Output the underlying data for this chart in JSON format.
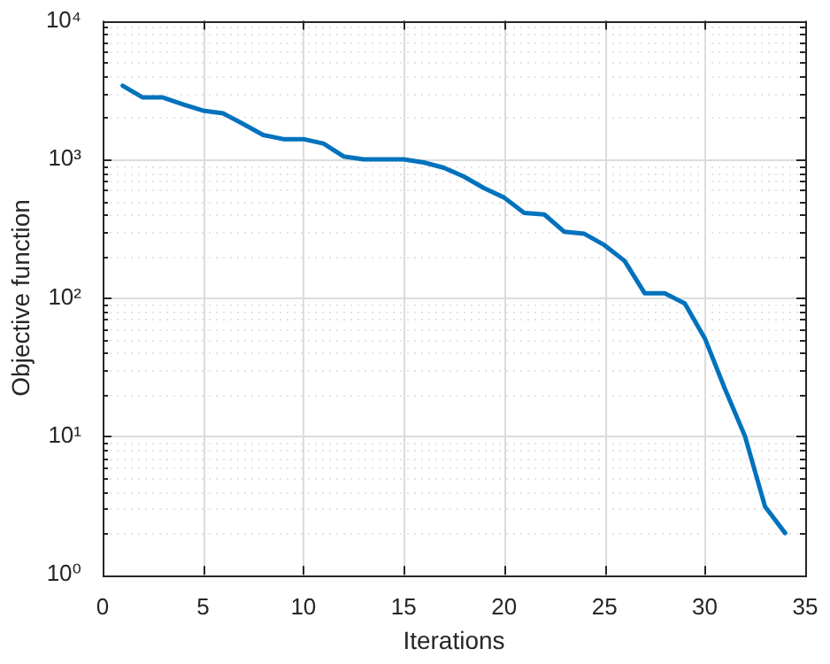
{
  "chart_data": {
    "type": "line",
    "xlabel": "Iterations",
    "ylabel": "Objective function",
    "x": [
      1,
      2,
      3,
      4,
      5,
      6,
      7,
      8,
      9,
      10,
      11,
      12,
      13,
      14,
      15,
      16,
      17,
      18,
      19,
      20,
      21,
      22,
      23,
      24,
      25,
      26,
      27,
      28,
      29,
      30,
      31,
      32,
      33,
      34
    ],
    "series": [
      {
        "color": "#0072bd",
        "values": [
          3400,
          2800,
          2800,
          2500,
          2250,
          2150,
          1800,
          1500,
          1400,
          1400,
          1300,
          1050,
          1000,
          1000,
          1000,
          950,
          870,
          750,
          620,
          530,
          410,
          400,
          300,
          290,
          240,
          185,
          108,
          108,
          91,
          51,
          22,
          10,
          3.1,
          2
        ]
      }
    ],
    "xlim": [
      0,
      35
    ],
    "xticks": [
      0,
      5,
      10,
      15,
      20,
      25,
      30,
      35
    ],
    "log": "y",
    "ylim": [
      1,
      10000
    ],
    "yticks": [
      {
        "value": 1,
        "label": "10⁰"
      },
      {
        "value": 2,
        "label": null
      },
      {
        "value": 3,
        "label": null
      },
      {
        "value": 4,
        "label": null
      },
      {
        "value": 5,
        "label": null
      },
      {
        "value": 6,
        "label": null
      },
      {
        "value": 7,
        "label": null
      },
      {
        "value": 8,
        "label": null
      },
      {
        "value": 9,
        "label": null
      },
      {
        "value": 10,
        "label": "10¹"
      },
      {
        "value": 20,
        "label": null
      },
      {
        "value": 30,
        "label": null
      },
      {
        "value": 40,
        "label": null
      },
      {
        "value": 50,
        "label": null
      },
      {
        "value": 60,
        "label": null
      },
      {
        "value": 70,
        "label": null
      },
      {
        "value": 80,
        "label": null
      },
      {
        "value": 90,
        "label": null
      },
      {
        "value": 100,
        "label": "10²"
      },
      {
        "value": 200,
        "label": null
      },
      {
        "value": 300,
        "label": null
      },
      {
        "value": 400,
        "label": null
      },
      {
        "value": 500,
        "label": null
      },
      {
        "value": 600,
        "label": null
      },
      {
        "value": 700,
        "label": null
      },
      {
        "value": 800,
        "label": null
      },
      {
        "value": 900,
        "label": null
      },
      {
        "value": 1000,
        "label": "10³"
      },
      {
        "value": 2000,
        "label": null
      },
      {
        "value": 3000,
        "label": null
      },
      {
        "value": 4000,
        "label": null
      },
      {
        "value": 5000,
        "label": null
      },
      {
        "value": 6000,
        "label": null
      },
      {
        "value": 7000,
        "label": null
      },
      {
        "value": 8000,
        "label": null
      },
      {
        "value": 9000,
        "label": null
      },
      {
        "value": 10000,
        "label": "10⁴"
      }
    ],
    "grid": true,
    "marker": "none",
    "line_style": "solid",
    "legend": false
  }
}
